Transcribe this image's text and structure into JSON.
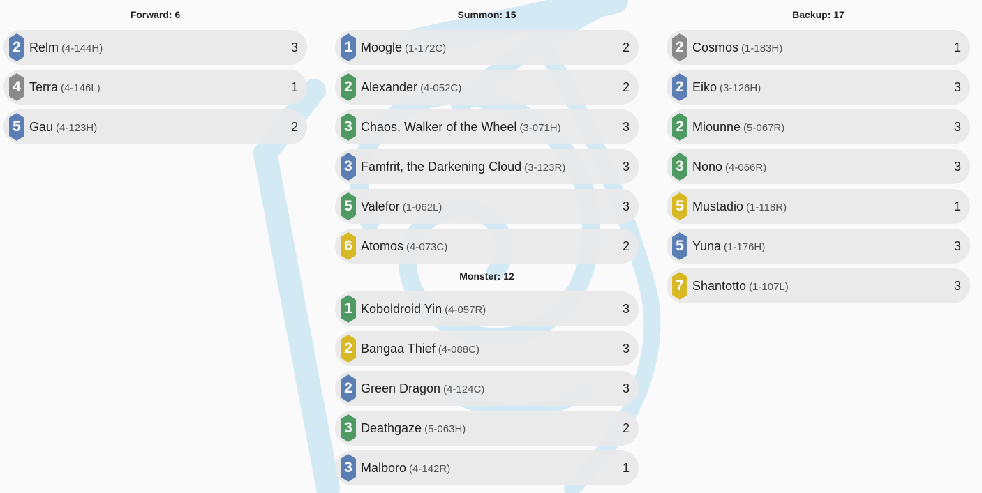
{
  "colors": {
    "background": "#fafafa",
    "row": "#e9e9e9",
    "badge_blue": "#5b7fb5",
    "badge_gray": "#8a8a8a",
    "badge_green": "#4f9a63",
    "badge_yellow": "#d9b825",
    "logo": "#cfe6f2"
  },
  "background_logo": {
    "icon": "swirl-crystal-logo"
  },
  "forward": {
    "title": "Forward: 6",
    "cards": [
      {
        "cost": "2",
        "element": "blue",
        "name": "Relm",
        "code": "(4-144H)",
        "qty": "3"
      },
      {
        "cost": "4",
        "element": "gray",
        "name": "Terra",
        "code": "(4-146L)",
        "qty": "1"
      },
      {
        "cost": "5",
        "element": "blue",
        "name": "Gau",
        "code": "(4-123H)",
        "qty": "2"
      }
    ]
  },
  "summon": {
    "title": "Summon: 15",
    "cards": [
      {
        "cost": "1",
        "element": "blue",
        "name": "Moogle",
        "code": "(1-172C)",
        "qty": "2"
      },
      {
        "cost": "2",
        "element": "green",
        "name": "Alexander",
        "code": "(4-052C)",
        "qty": "2"
      },
      {
        "cost": "3",
        "element": "green",
        "name": "Chaos, Walker of the Wheel",
        "code": "(3-071H)",
        "qty": "3"
      },
      {
        "cost": "3",
        "element": "blue",
        "name": "Famfrit, the Darkening Cloud",
        "code": "(3-123R)",
        "qty": "3"
      },
      {
        "cost": "5",
        "element": "green",
        "name": "Valefor",
        "code": "(1-062L)",
        "qty": "3"
      },
      {
        "cost": "6",
        "element": "yellow",
        "name": "Atomos",
        "code": "(4-073C)",
        "qty": "2"
      }
    ]
  },
  "monster": {
    "title": "Monster: 12",
    "cards": [
      {
        "cost": "1",
        "element": "green",
        "name": "Koboldroid Yin",
        "code": "(4-057R)",
        "qty": "3"
      },
      {
        "cost": "2",
        "element": "yellow",
        "name": "Bangaa Thief",
        "code": "(4-088C)",
        "qty": "3"
      },
      {
        "cost": "2",
        "element": "blue",
        "name": "Green Dragon",
        "code": "(4-124C)",
        "qty": "3"
      },
      {
        "cost": "3",
        "element": "green",
        "name": "Deathgaze",
        "code": "(5-063H)",
        "qty": "2"
      },
      {
        "cost": "3",
        "element": "blue",
        "name": "Malboro",
        "code": "(4-142R)",
        "qty": "1"
      }
    ]
  },
  "backup": {
    "title": "Backup: 17",
    "cards": [
      {
        "cost": "2",
        "element": "gray",
        "name": "Cosmos",
        "code": "(1-183H)",
        "qty": "1"
      },
      {
        "cost": "2",
        "element": "blue",
        "name": "Eiko",
        "code": "(3-126H)",
        "qty": "3"
      },
      {
        "cost": "2",
        "element": "green",
        "name": "Miounne",
        "code": "(5-067R)",
        "qty": "3"
      },
      {
        "cost": "3",
        "element": "green",
        "name": "Nono",
        "code": "(4-066R)",
        "qty": "3"
      },
      {
        "cost": "5",
        "element": "yellow",
        "name": "Mustadio",
        "code": "(1-118R)",
        "qty": "1"
      },
      {
        "cost": "5",
        "element": "blue",
        "name": "Yuna",
        "code": "(1-176H)",
        "qty": "3"
      },
      {
        "cost": "7",
        "element": "yellow",
        "name": "Shantotto",
        "code": "(1-107L)",
        "qty": "3"
      }
    ]
  }
}
